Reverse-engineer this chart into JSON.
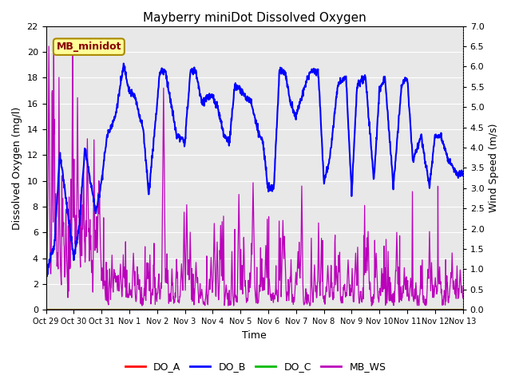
{
  "title": "Mayberry miniDot Dissolved Oxygen",
  "xlabel": "Time",
  "ylabel_left": "Dissolved Oxygen (mg/l)",
  "ylabel_right": "Wind Speed (m/s)",
  "ylim_left": [
    0,
    22
  ],
  "ylim_right": [
    0.0,
    7.0
  ],
  "yticks_left": [
    0,
    2,
    4,
    6,
    8,
    10,
    12,
    14,
    16,
    18,
    20,
    22
  ],
  "yticks_right": [
    0.0,
    0.5,
    1.0,
    1.5,
    2.0,
    2.5,
    3.0,
    3.5,
    4.0,
    4.5,
    5.0,
    5.5,
    6.0,
    6.5,
    7.0
  ],
  "xlim": [
    0,
    15
  ],
  "xtick_positions": [
    0,
    1,
    2,
    3,
    4,
    5,
    6,
    7,
    8,
    9,
    10,
    11,
    12,
    13,
    14,
    15
  ],
  "xtick_labels": [
    "Oct 29",
    "Oct 30",
    "Oct 31",
    "Nov 1",
    "Nov 2",
    "Nov 3",
    "Nov 4",
    "Nov 5",
    "Nov 6",
    "Nov 7",
    "Nov 8",
    "Nov 9",
    "Nov 10",
    "Nov 11",
    "Nov 12",
    "Nov 13"
  ],
  "plot_bg_color": "#e8e8e8",
  "fig_bg_color": "#ffffff",
  "grid_color": "#ffffff",
  "annotation_text": "MB_minidot",
  "annotation_bg": "#ffff99",
  "annotation_border": "#aa8800",
  "annotation_text_color": "#880000",
  "color_DO_A": "#ff0000",
  "color_DO_B": "#0000ff",
  "color_DO_C": "#00bb00",
  "color_MB_WS": "#bb00bb",
  "lw_DO_A": 1.2,
  "lw_DO_B": 1.5,
  "lw_DO_C": 2.0,
  "lw_MB_WS": 0.9,
  "title_fontsize": 11,
  "axis_label_fontsize": 9,
  "tick_fontsize": 8,
  "xtick_fontsize": 7,
  "legend_fontsize": 9,
  "ws_scale": 3.142857
}
